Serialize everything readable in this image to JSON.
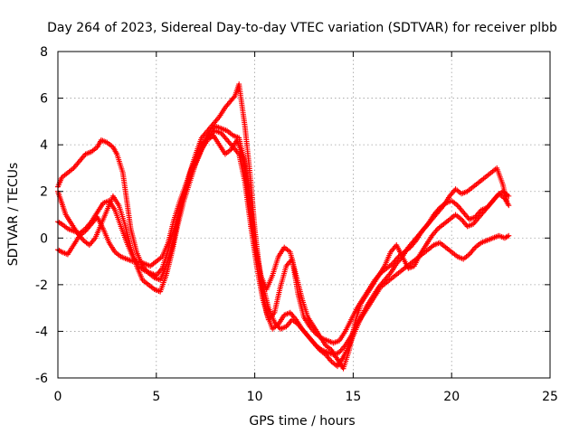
{
  "chart_data": {
    "type": "scatter",
    "title": "Day 264 of 2023, Sidereal Day-to-day VTEC variation (SDTVAR) for receiver plbb",
    "xlabel": "GPS time / hours",
    "ylabel": "SDTVAR / TECUs",
    "xlim": [
      0,
      25
    ],
    "ylim": [
      -6,
      8
    ],
    "x_ticks": [
      0,
      5,
      10,
      15,
      20,
      25
    ],
    "y_ticks": [
      -6,
      -4,
      -2,
      0,
      2,
      4,
      6,
      8
    ],
    "x_tick_labels": [
      "0",
      "5",
      "10",
      "15",
      "20",
      "25"
    ],
    "y_tick_labels": [
      "-6",
      "-4",
      "-2",
      "0",
      "2",
      "4",
      "6",
      "8"
    ],
    "grid": true,
    "marker": "plus",
    "color": "#ff0000",
    "series": [
      {
        "x": [
          0.0,
          0.2,
          0.5,
          0.8,
          1.1,
          1.4,
          1.7,
          2.0,
          2.2,
          2.5,
          2.8,
          3.0,
          3.3,
          3.5,
          3.7,
          4.0,
          4.3,
          4.6,
          4.9,
          5.2,
          5.5,
          5.8,
          6.1,
          6.4,
          6.7,
          7.0,
          7.3,
          7.6,
          7.9,
          8.2,
          8.5,
          8.8,
          9.0,
          9.2,
          9.5,
          9.8,
          10.0,
          10.3,
          10.6,
          10.9,
          11.2,
          11.5,
          11.8,
          12.1,
          12.4,
          12.7,
          13.0,
          13.3,
          13.6,
          13.9,
          14.2,
          14.5,
          14.8,
          15.1,
          15.4,
          15.7,
          16.0,
          16.3,
          16.6,
          16.9,
          17.2,
          17.5,
          17.8,
          18.1,
          18.4,
          18.7,
          19.0,
          19.3,
          19.6,
          19.9,
          20.2,
          20.5,
          20.8,
          21.1,
          21.4,
          21.7,
          22.0,
          22.3,
          22.6,
          22.8
        ],
        "y": [
          2.2,
          2.6,
          2.8,
          3.0,
          3.3,
          3.6,
          3.7,
          3.9,
          4.2,
          4.1,
          3.9,
          3.6,
          2.8,
          1.6,
          0.4,
          -0.6,
          -1.2,
          -1.5,
          -1.7,
          -1.8,
          -1.2,
          -0.4,
          0.8,
          1.9,
          2.8,
          3.6,
          4.3,
          4.6,
          4.9,
          5.2,
          5.6,
          5.9,
          6.1,
          6.6,
          4.8,
          2.4,
          0.4,
          -1.8,
          -3.2,
          -3.9,
          -3.7,
          -3.3,
          -3.2,
          -3.5,
          -3.9,
          -4.2,
          -4.5,
          -4.8,
          -5.0,
          -5.3,
          -5.5,
          -5.1,
          -4.6,
          -4.0,
          -3.4,
          -2.9,
          -2.5,
          -2.1,
          -1.8,
          -1.5,
          -1.1,
          -0.8,
          -0.4,
          -0.1,
          0.2,
          0.5,
          0.8,
          1.1,
          1.4,
          1.8,
          2.1,
          1.9,
          2.0,
          2.2,
          2.4,
          2.6,
          2.8,
          3.0,
          2.3,
          1.6
        ]
      },
      {
        "x": [
          0.0,
          0.2,
          0.5,
          0.8,
          1.1,
          1.4,
          1.7,
          2.0,
          2.3,
          2.6,
          2.9,
          3.2,
          3.5,
          3.8,
          4.1,
          4.4,
          4.7,
          5.0,
          5.3,
          5.6,
          5.9,
          6.2,
          6.5,
          6.8,
          7.1,
          7.4,
          7.7,
          8.0,
          8.3,
          8.6,
          8.9,
          9.2,
          9.5,
          9.8,
          10.1,
          10.4,
          10.7,
          11.0,
          11.3,
          11.6,
          11.9,
          12.2,
          12.5,
          12.8,
          13.1,
          13.4,
          13.7,
          14.0,
          14.3,
          14.6,
          14.9,
          15.2,
          15.5,
          15.8,
          16.1,
          16.4,
          16.7,
          17.0,
          17.3,
          17.6,
          17.9,
          18.2,
          18.5,
          18.8,
          19.1,
          19.4,
          19.7,
          20.0,
          20.3,
          20.6,
          20.9,
          21.2,
          21.5,
          21.8,
          22.1,
          22.4,
          22.7,
          22.9
        ],
        "y": [
          0.7,
          0.6,
          0.4,
          0.3,
          0.2,
          0.4,
          0.7,
          1.1,
          1.5,
          1.6,
          1.2,
          0.5,
          -0.2,
          -0.8,
          -1.2,
          -1.4,
          -1.5,
          -1.6,
          -1.3,
          -0.5,
          0.4,
          1.3,
          2.1,
          2.8,
          3.4,
          4.0,
          4.4,
          4.6,
          4.5,
          4.2,
          3.9,
          3.6,
          2.4,
          0.5,
          -1.2,
          -2.6,
          -3.5,
          -3.2,
          -2.1,
          -1.2,
          -0.9,
          -2.4,
          -3.4,
          -3.8,
          -4.1,
          -4.3,
          -4.4,
          -4.5,
          -4.4,
          -4.0,
          -3.5,
          -3.0,
          -2.6,
          -2.2,
          -1.8,
          -1.5,
          -1.3,
          -1.1,
          -0.8,
          -0.6,
          -0.4,
          -0.1,
          0.3,
          0.6,
          1.0,
          1.3,
          1.5,
          1.6,
          1.4,
          1.1,
          0.8,
          0.9,
          1.2,
          1.3,
          1.6,
          1.9,
          1.7,
          1.4
        ]
      },
      {
        "x": [
          0.0,
          0.2,
          0.5,
          0.8,
          1.1,
          1.4,
          1.7,
          2.0,
          2.3,
          2.6,
          2.9,
          3.2,
          3.5,
          3.8,
          4.1,
          4.4,
          4.7,
          5.0,
          5.3,
          5.6,
          5.9,
          6.2,
          6.5,
          6.8,
          7.1,
          7.4,
          7.7,
          8.0,
          8.3,
          8.6,
          8.9,
          9.2,
          9.5,
          9.8,
          10.1,
          10.4,
          10.7,
          11.0,
          11.3,
          11.6,
          11.9,
          12.2,
          12.5,
          12.8,
          13.1,
          13.4,
          13.7,
          14.0,
          14.3,
          14.6,
          14.9,
          15.2,
          15.5,
          15.8,
          16.1,
          16.4,
          16.7,
          17.0,
          17.3,
          17.6,
          17.9,
          18.2,
          18.5,
          18.8,
          19.1,
          19.4,
          19.7,
          20.0,
          20.3,
          20.6,
          20.9,
          21.2,
          21.5,
          21.8,
          22.1,
          22.4,
          22.7,
          22.9
        ],
        "y": [
          -0.5,
          -0.6,
          -0.7,
          -0.3,
          0.1,
          0.3,
          0.6,
          0.9,
          0.4,
          -0.2,
          -0.6,
          -0.8,
          -0.9,
          -1.0,
          -1.0,
          -1.1,
          -1.2,
          -1.0,
          -0.8,
          -0.2,
          0.8,
          1.6,
          2.3,
          3.0,
          3.6,
          4.1,
          4.5,
          4.8,
          4.7,
          4.6,
          4.4,
          4.3,
          3.2,
          1.2,
          -0.6,
          -2.0,
          -3.0,
          -3.6,
          -3.9,
          -3.8,
          -3.5,
          -3.7,
          -4.0,
          -4.3,
          -4.6,
          -4.8,
          -4.9,
          -5.0,
          -4.9,
          -4.6,
          -4.2,
          -3.7,
          -3.3,
          -2.9,
          -2.5,
          -2.1,
          -1.9,
          -1.7,
          -1.5,
          -1.3,
          -1.1,
          -0.9,
          -0.7,
          -0.5,
          -0.3,
          -0.2,
          -0.4,
          -0.6,
          -0.8,
          -0.9,
          -0.7,
          -0.4,
          -0.2,
          -0.1,
          0.0,
          0.1,
          0.0,
          0.1
        ]
      },
      {
        "x": [
          0.0,
          0.2,
          0.4,
          0.7,
          1.0,
          1.3,
          1.6,
          1.9,
          2.2,
          2.5,
          2.8,
          3.1,
          3.4,
          3.7,
          4.0,
          4.3,
          4.6,
          4.9,
          5.2,
          5.5,
          5.8,
          6.1,
          6.4,
          6.7,
          7.0,
          7.3,
          7.6,
          7.9,
          8.2,
          8.5,
          8.8,
          9.1,
          9.4,
          9.7,
          10.0,
          10.3,
          10.6,
          10.9,
          11.2,
          11.5,
          11.8,
          12.1,
          12.4,
          12.7,
          13.0,
          13.3,
          13.6,
          13.9,
          14.2,
          14.5,
          14.8,
          15.1,
          15.4,
          15.7,
          16.0,
          16.3,
          16.6,
          16.9,
          17.2,
          17.5,
          17.8,
          18.1,
          18.4,
          18.7,
          19.0,
          19.3,
          19.6,
          19.9,
          20.2,
          20.5,
          20.8,
          21.1,
          21.4,
          21.7,
          22.0,
          22.3,
          22.6,
          22.9
        ],
        "y": [
          2.0,
          1.5,
          1.0,
          0.6,
          0.2,
          -0.1,
          -0.3,
          0.0,
          0.6,
          1.2,
          1.8,
          1.4,
          0.6,
          -0.4,
          -1.2,
          -1.8,
          -2.0,
          -2.2,
          -2.3,
          -1.6,
          -0.6,
          0.6,
          1.6,
          2.4,
          3.2,
          3.8,
          4.2,
          4.4,
          4.0,
          3.6,
          3.8,
          4.2,
          3.4,
          1.6,
          -0.4,
          -1.6,
          -2.2,
          -1.6,
          -0.8,
          -0.4,
          -0.6,
          -1.6,
          -2.6,
          -3.4,
          -3.8,
          -4.2,
          -4.6,
          -4.8,
          -5.2,
          -5.6,
          -4.8,
          -3.6,
          -2.8,
          -2.4,
          -2.0,
          -1.6,
          -1.2,
          -0.6,
          -0.3,
          -0.8,
          -1.3,
          -1.2,
          -0.7,
          -0.3,
          0.1,
          0.4,
          0.6,
          0.8,
          1.0,
          0.8,
          0.5,
          0.6,
          0.9,
          1.2,
          1.5,
          1.8,
          2.0,
          1.8
        ]
      }
    ]
  }
}
